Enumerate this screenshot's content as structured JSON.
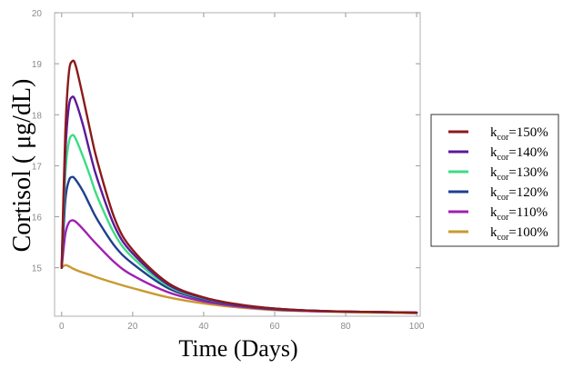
{
  "chart_data": {
    "type": "line",
    "xlabel": "Time (Days)",
    "ylabel": "Cortisol ( μg/dL)",
    "xlim": [
      -2,
      101
    ],
    "ylim": [
      14.05,
      20
    ],
    "x_ticks": [
      "0",
      "20",
      "40",
      "60",
      "80",
      "100"
    ],
    "y_ticks": [
      "15",
      "16",
      "17",
      "18",
      "19",
      "20"
    ],
    "legend_position": "right",
    "series": [
      {
        "name": "kcor=150%",
        "label_main": "k",
        "label_sub": "cor",
        "label_rest": "=150%",
        "color": "#8b1a1a",
        "x": [
          0,
          1,
          2,
          3,
          4,
          6,
          8,
          10,
          15,
          20,
          30,
          40,
          50,
          60,
          70,
          80,
          90,
          100
        ],
        "y": [
          15.0,
          17.6,
          18.8,
          19.05,
          18.95,
          18.35,
          17.7,
          17.1,
          15.95,
          15.35,
          14.7,
          14.42,
          14.28,
          14.2,
          14.16,
          14.14,
          14.13,
          14.12
        ]
      },
      {
        "name": "kcor=140%",
        "label_main": "k",
        "label_sub": "cor",
        "label_rest": "=140%",
        "color": "#5b1a9a",
        "x": [
          0,
          1,
          2,
          3,
          4,
          6,
          8,
          10,
          15,
          20,
          30,
          40,
          50,
          60,
          70,
          80,
          90,
          100
        ],
        "y": [
          15.0,
          17.2,
          18.15,
          18.35,
          18.25,
          17.8,
          17.25,
          16.75,
          15.8,
          15.28,
          14.67,
          14.41,
          14.27,
          14.2,
          14.16,
          14.14,
          14.13,
          14.12
        ]
      },
      {
        "name": "kcor=130%",
        "label_main": "k",
        "label_sub": "cor",
        "label_rest": "=130%",
        "color": "#3ddc84",
        "x": [
          0,
          1,
          2,
          3,
          4,
          6,
          8,
          10,
          15,
          20,
          30,
          40,
          50,
          60,
          70,
          80,
          90,
          100
        ],
        "y": [
          15.0,
          16.8,
          17.45,
          17.6,
          17.52,
          17.18,
          16.8,
          16.4,
          15.65,
          15.2,
          14.64,
          14.4,
          14.27,
          14.2,
          14.16,
          14.14,
          14.13,
          14.12
        ]
      },
      {
        "name": "kcor=120%",
        "label_main": "k",
        "label_sub": "cor",
        "label_rest": "=120%",
        "color": "#1f3f8f",
        "x": [
          0,
          1,
          2,
          3,
          4,
          6,
          8,
          10,
          15,
          20,
          30,
          40,
          50,
          60,
          70,
          80,
          90,
          100
        ],
        "y": [
          15.0,
          16.3,
          16.7,
          16.78,
          16.72,
          16.5,
          16.22,
          15.95,
          15.42,
          15.08,
          14.6,
          14.38,
          14.26,
          14.19,
          14.16,
          14.14,
          14.13,
          14.12
        ]
      },
      {
        "name": "kcor=110%",
        "label_main": "k",
        "label_sub": "cor",
        "label_rest": "=110%",
        "color": "#a020b0",
        "x": [
          0,
          1,
          2,
          3,
          4,
          6,
          8,
          10,
          15,
          20,
          30,
          40,
          50,
          60,
          70,
          80,
          90,
          100
        ],
        "y": [
          15.0,
          15.65,
          15.88,
          15.93,
          15.9,
          15.76,
          15.6,
          15.45,
          15.1,
          14.85,
          14.52,
          14.34,
          14.24,
          14.18,
          14.15,
          14.14,
          14.13,
          14.12
        ]
      },
      {
        "name": "kcor=100%",
        "label_main": "k",
        "label_sub": "cor",
        "label_rest": "=100%",
        "color": "#c99a2e",
        "x": [
          0,
          1,
          2,
          3,
          5,
          8,
          10,
          15,
          20,
          30,
          40,
          50,
          60,
          70,
          80,
          90,
          100
        ],
        "y": [
          15.0,
          15.05,
          15.03,
          14.99,
          14.93,
          14.86,
          14.81,
          14.7,
          14.6,
          14.42,
          14.3,
          14.22,
          14.17,
          14.15,
          14.13,
          14.12,
          14.11
        ]
      }
    ]
  }
}
